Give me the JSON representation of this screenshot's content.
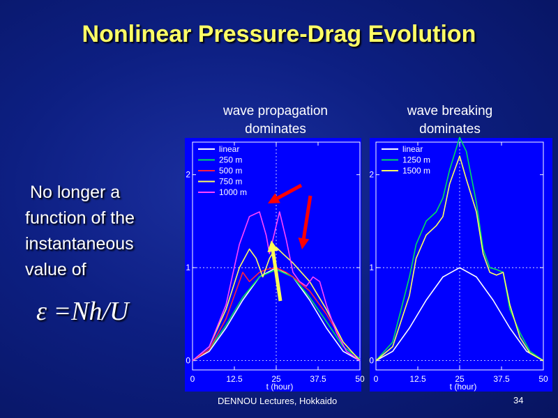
{
  "slide": {
    "title": "Nonlinear Pressure-Drag Evolution",
    "subtitle_left": [
      "wave propagation",
      "dominates"
    ],
    "subtitle_right": [
      "wave breaking",
      "dominates"
    ],
    "side_text": [
      " No longer a",
      "function of the",
      "instantaneous",
      "value of"
    ],
    "epsilon": "ε =Nh/U",
    "footer": "DENNOU Lectures, Hokkaido",
    "page_number": "34",
    "colors": {
      "background": "#0d1f82",
      "plot_bg": "#0000ff",
      "title": "#ffff66",
      "arrow_red": "#ff0000",
      "arrow_yellow": "#ffff55"
    }
  },
  "chart_data": [
    {
      "type": "line",
      "title": "",
      "xlabel": "t (hour)",
      "ylabel": "",
      "xlim": [
        0,
        50
      ],
      "ylim": [
        -0.1,
        2.35
      ],
      "xticks": [
        "0",
        "12.5",
        "25",
        "37.5",
        "50"
      ],
      "yticks": [
        "0",
        "1",
        "2"
      ],
      "grid": "dashed at x=25 and y=1",
      "legend": "top-left",
      "series": [
        {
          "name": "linear",
          "color": "#ffffff",
          "x": [
            0,
            5,
            10,
            15,
            20,
            25,
            30,
            35,
            40,
            45,
            50
          ],
          "y": [
            0,
            0.1,
            0.35,
            0.65,
            0.9,
            1.0,
            0.9,
            0.65,
            0.35,
            0.1,
            0
          ]
        },
        {
          "name": "250 m",
          "color": "#00e060",
          "x": [
            0,
            5,
            10,
            15,
            20,
            25,
            30,
            35,
            40,
            45,
            50
          ],
          "y": [
            0,
            0.12,
            0.38,
            0.68,
            0.9,
            0.98,
            0.9,
            0.68,
            0.42,
            0.15,
            0.02
          ]
        },
        {
          "name": "500 m",
          "color": "#ff2040",
          "x": [
            0,
            5,
            10,
            13,
            15,
            17,
            20,
            22,
            25,
            28,
            30,
            35,
            40,
            45,
            50
          ],
          "y": [
            0,
            0.12,
            0.45,
            0.75,
            0.95,
            0.85,
            0.95,
            0.98,
            1.0,
            0.95,
            0.9,
            0.75,
            0.5,
            0.2,
            0
          ]
        },
        {
          "name": "750 m",
          "color": "#ffff60",
          "x": [
            0,
            5,
            10,
            14,
            17,
            19,
            21,
            23,
            25,
            27,
            30,
            35,
            40,
            45,
            50
          ],
          "y": [
            0,
            0.15,
            0.55,
            1.0,
            1.2,
            1.1,
            0.9,
            1.1,
            1.22,
            1.15,
            1.05,
            0.85,
            0.55,
            0.2,
            0
          ]
        },
        {
          "name": "1000 m",
          "color": "#ff44ff",
          "x": [
            0,
            5,
            10,
            14,
            17,
            20,
            22,
            23,
            24,
            26,
            28,
            30,
            32,
            34,
            36,
            38,
            40,
            43,
            46,
            50
          ],
          "y": [
            0,
            0.15,
            0.6,
            1.25,
            1.55,
            1.6,
            1.35,
            1.15,
            1.3,
            1.6,
            1.3,
            0.95,
            0.85,
            0.8,
            0.9,
            0.85,
            0.6,
            0.3,
            0.1,
            0
          ]
        }
      ]
    },
    {
      "type": "line",
      "title": "",
      "xlabel": "t (hour)",
      "ylabel": "",
      "xlim": [
        0,
        50
      ],
      "ylim": [
        -0.1,
        2.35
      ],
      "xticks": [
        "0",
        "12.5",
        "25",
        "37.5",
        "50"
      ],
      "yticks": [
        "0",
        "1",
        "2"
      ],
      "grid": "dashed at x=25 and y=1",
      "legend": "top-left",
      "series": [
        {
          "name": "linear",
          "color": "#ffffff",
          "x": [
            0,
            5,
            10,
            15,
            20,
            25,
            30,
            35,
            40,
            45,
            50
          ],
          "y": [
            0,
            0.1,
            0.35,
            0.65,
            0.9,
            1.0,
            0.9,
            0.65,
            0.35,
            0.1,
            0
          ]
        },
        {
          "name": "1250 m",
          "color": "#00e060",
          "x": [
            0,
            5,
            10,
            12,
            15,
            18,
            20,
            22,
            25,
            27,
            30,
            32,
            34,
            36,
            38,
            40,
            43,
            46,
            50
          ],
          "y": [
            0,
            0.2,
            0.9,
            1.25,
            1.5,
            1.6,
            1.75,
            2.05,
            2.4,
            2.25,
            1.7,
            1.2,
            1.0,
            0.98,
            0.95,
            0.55,
            0.3,
            0.1,
            0
          ]
        },
        {
          "name": "1500 m",
          "color": "#ffff60",
          "x": [
            0,
            5,
            10,
            12,
            15,
            18,
            20,
            22,
            25,
            27,
            30,
            32,
            34,
            36,
            38,
            40,
            43,
            46,
            50
          ],
          "y": [
            0,
            0.15,
            0.7,
            1.1,
            1.35,
            1.45,
            1.55,
            1.9,
            2.2,
            1.95,
            1.6,
            1.15,
            0.95,
            0.92,
            0.95,
            0.6,
            0.25,
            0.08,
            0
          ]
        }
      ]
    }
  ]
}
